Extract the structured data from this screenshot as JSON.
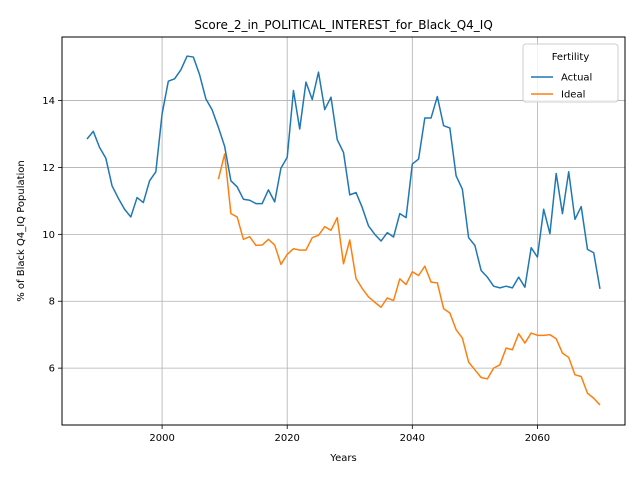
{
  "chart_data": {
    "type": "line",
    "title": "Score_2_in_POLITICAL_INTEREST_for_Black_Q4_IQ",
    "xlabel": "Years",
    "ylabel": "% of Black Q4_IQ Population",
    "xlim": [
      1984,
      2074
    ],
    "ylim": [
      4.3,
      15.9
    ],
    "xticks": [
      2000,
      2020,
      2040,
      2060
    ],
    "yticks": [
      6,
      8,
      10,
      12,
      14
    ],
    "grid": true,
    "legend": {
      "title": "Fertility",
      "position": "top-right"
    },
    "series": [
      {
        "name": "Actual",
        "color": "#1f77b4",
        "x": [
          1988,
          1989,
          1990,
          1991,
          1992,
          1993,
          1994,
          1995,
          1996,
          1997,
          1998,
          1999,
          2000,
          2001,
          2002,
          2003,
          2004,
          2005,
          2006,
          2007,
          2008,
          2009,
          2010,
          2011,
          2012,
          2013,
          2014,
          2015,
          2016,
          2017,
          2018,
          2019,
          2020,
          2021,
          2022,
          2023,
          2024,
          2025,
          2026,
          2027,
          2028,
          2029,
          2030,
          2031,
          2032,
          2033,
          2034,
          2035,
          2036,
          2037,
          2038,
          2039,
          2040,
          2041,
          2042,
          2043,
          2044,
          2045,
          2046,
          2047,
          2048,
          2049,
          2050,
          2051,
          2052,
          2053,
          2054,
          2055,
          2056,
          2057,
          2058,
          2059,
          2060,
          2061,
          2062,
          2063,
          2064,
          2065,
          2066,
          2067,
          2068,
          2069,
          2070
        ],
        "values": [
          12.85,
          13.08,
          12.6,
          12.28,
          11.45,
          11.08,
          10.75,
          10.52,
          11.1,
          10.95,
          11.6,
          11.87,
          13.6,
          14.58,
          14.65,
          14.92,
          15.33,
          15.3,
          14.77,
          14.05,
          13.72,
          13.2,
          12.63,
          11.6,
          11.42,
          11.05,
          11.02,
          10.92,
          10.92,
          11.33,
          10.97,
          11.98,
          12.3,
          14.3,
          13.15,
          14.55,
          14.03,
          14.85,
          13.73,
          14.1,
          12.83,
          12.45,
          11.18,
          11.25,
          10.8,
          10.25,
          10.0,
          9.8,
          10.05,
          9.92,
          10.62,
          10.5,
          12.1,
          12.25,
          13.48,
          13.48,
          14.12,
          13.25,
          13.18,
          11.75,
          11.35,
          9.9,
          9.67,
          8.92,
          8.72,
          8.45,
          8.4,
          8.45,
          8.4,
          8.72,
          8.42,
          9.6,
          9.32,
          10.75,
          10.02,
          11.82,
          10.62,
          11.87,
          10.45,
          10.83,
          9.55,
          9.45,
          8.37
        ]
      },
      {
        "name": "Ideal",
        "color": "#ff7f0e",
        "x": [
          2009,
          2010,
          2011,
          2012,
          2013,
          2014,
          2015,
          2016,
          2017,
          2018,
          2019,
          2020,
          2021,
          2022,
          2023,
          2024,
          2025,
          2026,
          2027,
          2028,
          2029,
          2030,
          2031,
          2032,
          2033,
          2034,
          2035,
          2036,
          2037,
          2038,
          2039,
          2040,
          2041,
          2042,
          2043,
          2044,
          2045,
          2046,
          2047,
          2048,
          2049,
          2050,
          2051,
          2052,
          2053,
          2054,
          2055,
          2056,
          2057,
          2058,
          2059,
          2060,
          2061,
          2062,
          2063,
          2064,
          2065,
          2066,
          2067,
          2068,
          2069,
          2070
        ],
        "values": [
          11.65,
          12.4,
          10.62,
          10.52,
          9.85,
          9.93,
          9.67,
          9.68,
          9.85,
          9.68,
          9.1,
          9.4,
          9.57,
          9.53,
          9.53,
          9.9,
          9.97,
          10.23,
          10.12,
          10.5,
          9.12,
          9.83,
          8.68,
          8.38,
          8.13,
          7.97,
          7.82,
          8.1,
          8.02,
          8.67,
          8.5,
          8.88,
          8.77,
          9.05,
          8.57,
          8.55,
          7.78,
          7.65,
          7.15,
          6.9,
          6.18,
          5.95,
          5.72,
          5.68,
          6.0,
          6.1,
          6.6,
          6.55,
          7.03,
          6.75,
          7.05,
          6.98,
          6.98,
          7.0,
          6.88,
          6.45,
          6.32,
          5.8,
          5.75,
          5.25,
          5.1,
          4.9
        ]
      }
    ]
  }
}
